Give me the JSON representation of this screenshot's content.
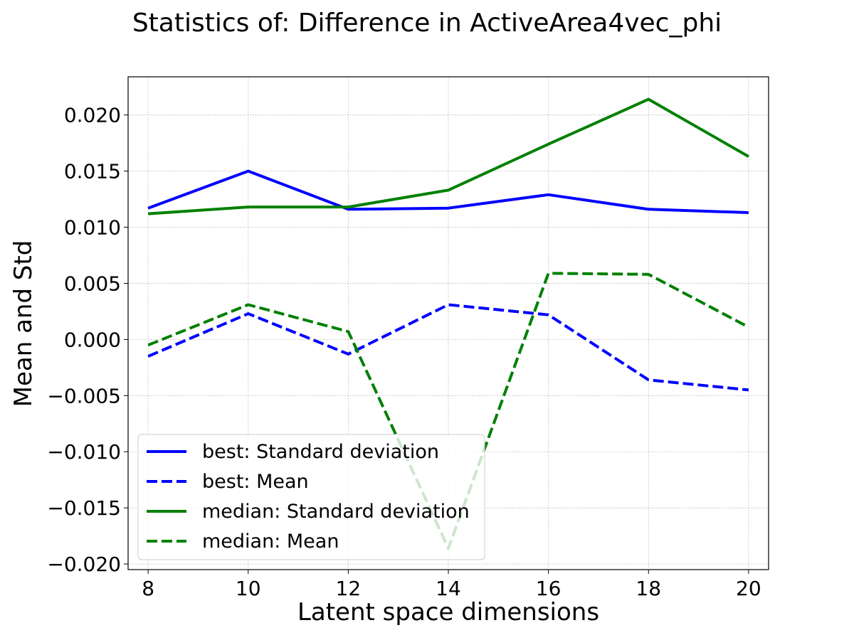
{
  "chart_data": {
    "type": "line",
    "title": "Statistics of: Difference in ActiveArea4vec_phi",
    "xlabel": "Latent space dimensions",
    "ylabel": "Mean and Std",
    "x": [
      8,
      10,
      12,
      14,
      16,
      18,
      20
    ],
    "xticks": [
      "8",
      "10",
      "12",
      "14",
      "16",
      "18",
      "20"
    ],
    "yticks": [
      -0.02,
      -0.015,
      -0.01,
      -0.005,
      0.0,
      0.005,
      0.01,
      0.015,
      0.02
    ],
    "ytick_labels": [
      "−0.020",
      "−0.015",
      "−0.010",
      "−0.005",
      "0.000",
      "0.005",
      "0.010",
      "0.015",
      "0.020"
    ],
    "xlim": [
      7.6,
      20.4
    ],
    "ylim": [
      -0.0205,
      0.0234
    ],
    "grid": true,
    "legend_position": "lower-left",
    "series": [
      {
        "name": "best: Standard deviation",
        "color": "#0000ff",
        "style": "solid",
        "values": [
          0.0117,
          0.015,
          0.0116,
          0.0117,
          0.0129,
          0.0116,
          0.0113
        ]
      },
      {
        "name": "best: Mean",
        "color": "#0000ff",
        "style": "dashed",
        "values": [
          -0.0015,
          0.0023,
          -0.0013,
          0.0031,
          0.0022,
          -0.0036,
          -0.0045
        ]
      },
      {
        "name": "median: Standard deviation",
        "color": "#008000",
        "style": "solid",
        "values": [
          0.0112,
          0.0118,
          0.0118,
          0.0133,
          0.0174,
          0.0214,
          0.0163
        ]
      },
      {
        "name": "median: Mean",
        "color": "#008000",
        "style": "dashed",
        "values": [
          -0.0005,
          0.0031,
          0.0007,
          -0.0186,
          0.0059,
          0.0058,
          0.0011
        ]
      }
    ]
  }
}
